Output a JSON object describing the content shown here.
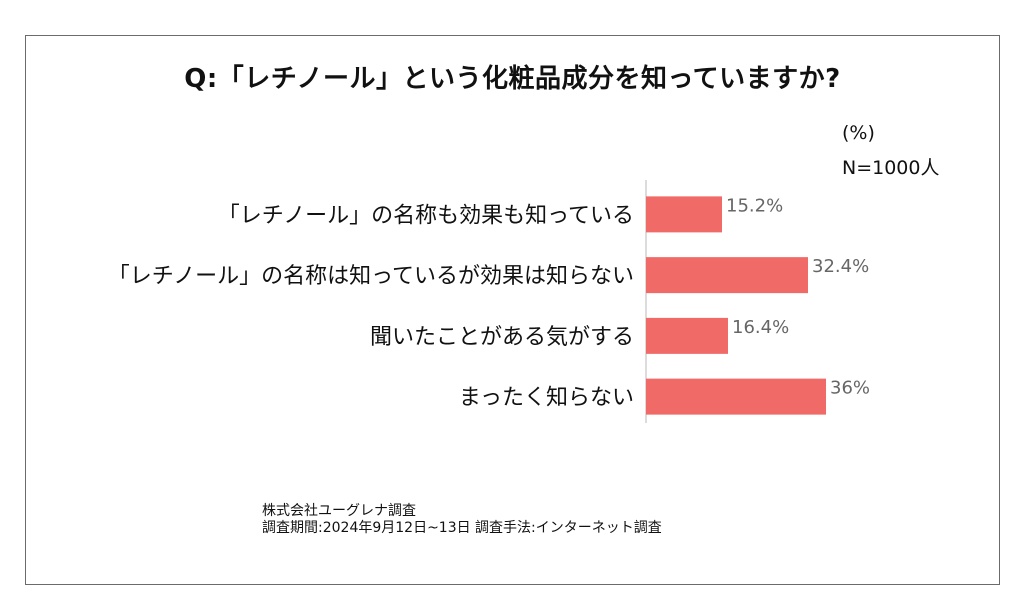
{
  "title": "Q:「レチノール」という化粧品成分を知っていますか?",
  "unit_label": "(%)",
  "sample_label": "N=1000人",
  "chart_data": {
    "type": "bar",
    "orientation": "horizontal",
    "categories": [
      "「レチノール」の名称も効果も知っている",
      "「レチノール」の名称は知っているが効果は知らない",
      "聞いたことがある気がする",
      "まったく知らない"
    ],
    "values": [
      15.2,
      32.4,
      16.4,
      36
    ],
    "value_labels": [
      "15.2%",
      "32.4%",
      "16.4%",
      "36%"
    ],
    "xlim": [
      0,
      100
    ],
    "grid": false,
    "bar_color": "#f06b67",
    "axis_color": "#d0d0d0",
    "value_label_color": "#666666"
  },
  "source": {
    "line1": "株式会社ユーグレナ調査",
    "line2": "調査期間:2024年9月12日~13日 調査手法:インターネット調査"
  }
}
